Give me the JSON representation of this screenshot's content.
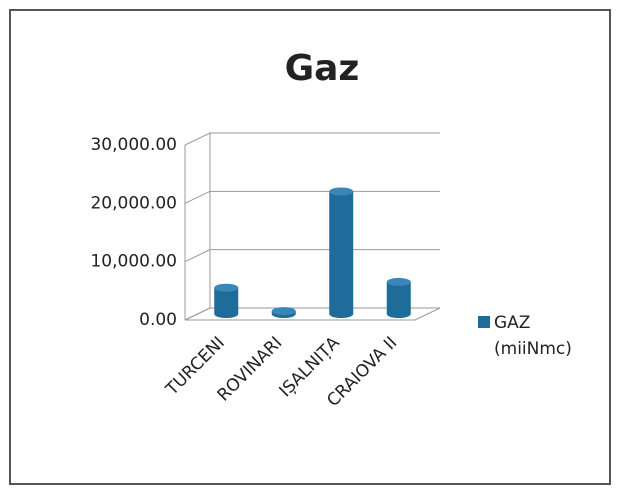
{
  "chart_data": {
    "type": "bar",
    "title": "Gaz",
    "categories": [
      "TURCENI",
      "ROVINARI",
      "IȘALNIȚA",
      "CRAIOVA II"
    ],
    "series": [
      {
        "name": "GAZ (miiNmc)",
        "color": "#1f6c9b",
        "values": [
          4500,
          500,
          21000,
          5500
        ]
      }
    ],
    "ylim": [
      0,
      30000
    ],
    "yticks": [
      {
        "value": 0,
        "label": "0.00"
      },
      {
        "value": 10000,
        "label": "10,000.00"
      },
      {
        "value": 20000,
        "label": "20,000.00"
      },
      {
        "value": 30000,
        "label": "30,000.00"
      }
    ],
    "grid": true,
    "legend": "right"
  }
}
